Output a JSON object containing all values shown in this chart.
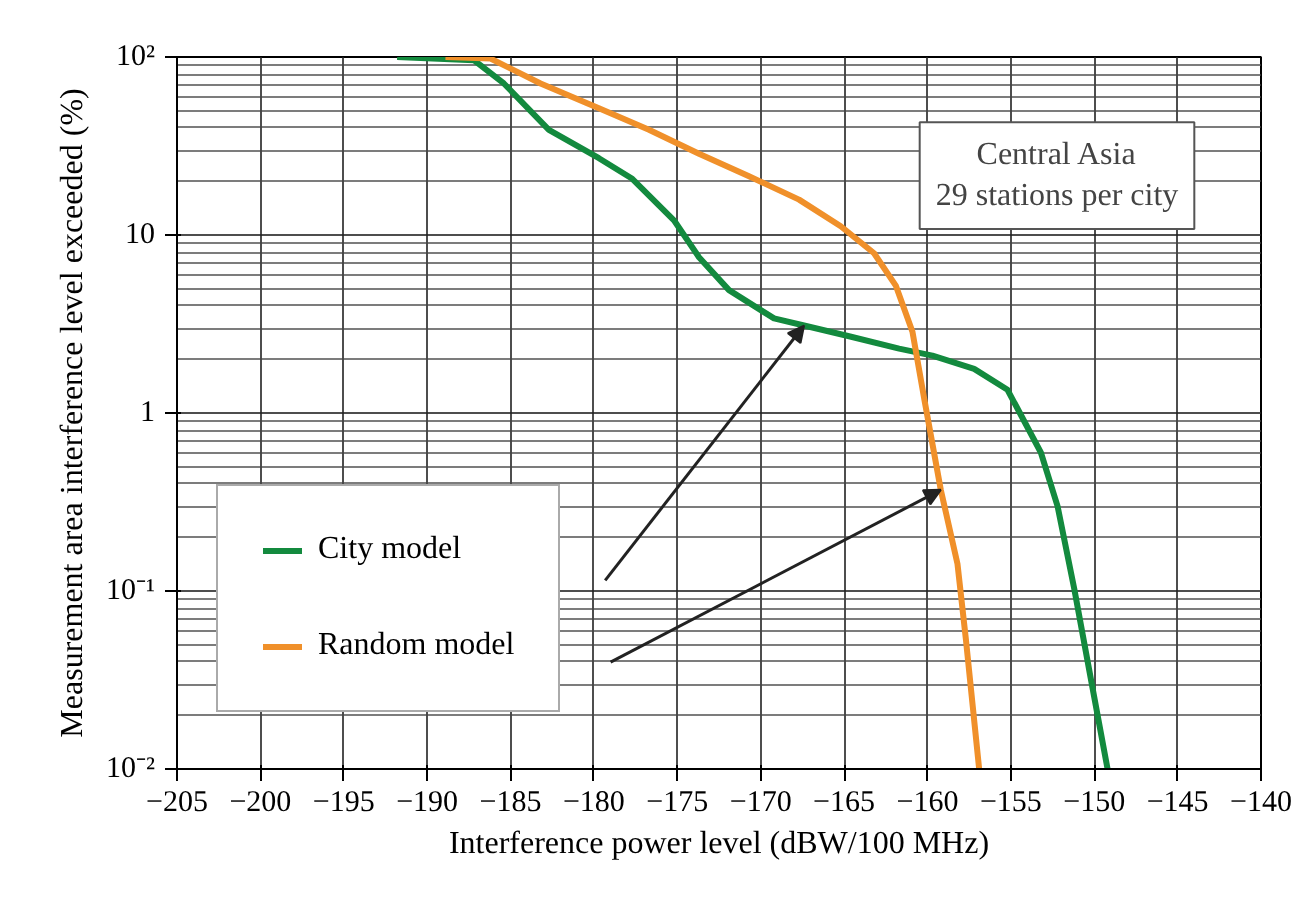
{
  "chart_data": {
    "type": "line",
    "xlabel": "Interference power level (dBW/100 MHz)",
    "ylabel": "Measurement area interference level exceeded (%)",
    "annotations": [
      "Central Asia\n29 stations per city"
    ],
    "log": "y",
    "grid": true,
    "legend": "bottom left",
    "line_style": "solid",
    "xlim": [
      -205,
      -140
    ],
    "xticks": [
      {
        "value": -205,
        "label": "−205"
      },
      {
        "value": -200,
        "label": "−200"
      },
      {
        "value": -195,
        "label": "−195"
      },
      {
        "value": -190,
        "label": "−190"
      },
      {
        "value": -185,
        "label": "−185"
      },
      {
        "value": -180,
        "label": "−180"
      },
      {
        "value": -175,
        "label": "−175"
      },
      {
        "value": -170,
        "label": "−170"
      },
      {
        "value": -165,
        "label": "−165"
      },
      {
        "value": -160,
        "label": "−160"
      },
      {
        "value": -155,
        "label": "−155"
      },
      {
        "value": -150,
        "label": "−150"
      },
      {
        "value": -145,
        "label": "−145"
      },
      {
        "value": -140,
        "label": "−140"
      }
    ],
    "ylim": [
      0.01,
      100
    ],
    "yticks": [
      {
        "value": 0.01,
        "label": "10⁻²"
      },
      {
        "value": 0.1,
        "label": "10⁻¹"
      },
      1,
      10,
      {
        "value": 100,
        "label": "10²"
      }
    ],
    "series": [
      {
        "name": "City model",
        "color": "#138a3e",
        "x": [
          -191.8,
          -187.2,
          -185.4,
          -182.7,
          -179.7,
          -177.7,
          -175.2,
          -173.7,
          -171.9,
          -169.2,
          -167.4,
          -164.7,
          -161.7,
          -159.7,
          -157.2,
          -155.2,
          -153.2,
          -152.2,
          -151.2,
          -150.2,
          -149.2
        ],
        "values": [
          100,
          96,
          71,
          39,
          27,
          20.7,
          12.1,
          7.5,
          4.9,
          3.4,
          3.1,
          2.7,
          2.3,
          2.1,
          1.77,
          1.35,
          0.6,
          0.3,
          0.103,
          0.032,
          0.01
        ]
      },
      {
        "name": "Random model",
        "color": "#f0902a",
        "x": [
          -188.9,
          -186.2,
          -183.2,
          -179.7,
          -176.7,
          -173.7,
          -170.7,
          -167.7,
          -165.2,
          -163.2,
          -161.9,
          -160.9,
          -160.2,
          -159.2,
          -158.2,
          -157.7,
          -156.9
        ],
        "values": [
          100,
          98,
          71,
          51.5,
          39,
          28.6,
          21.4,
          15.8,
          11.2,
          7.9,
          5.2,
          2.86,
          1.21,
          0.37,
          0.142,
          0.054,
          0.01
        ]
      }
    ]
  }
}
